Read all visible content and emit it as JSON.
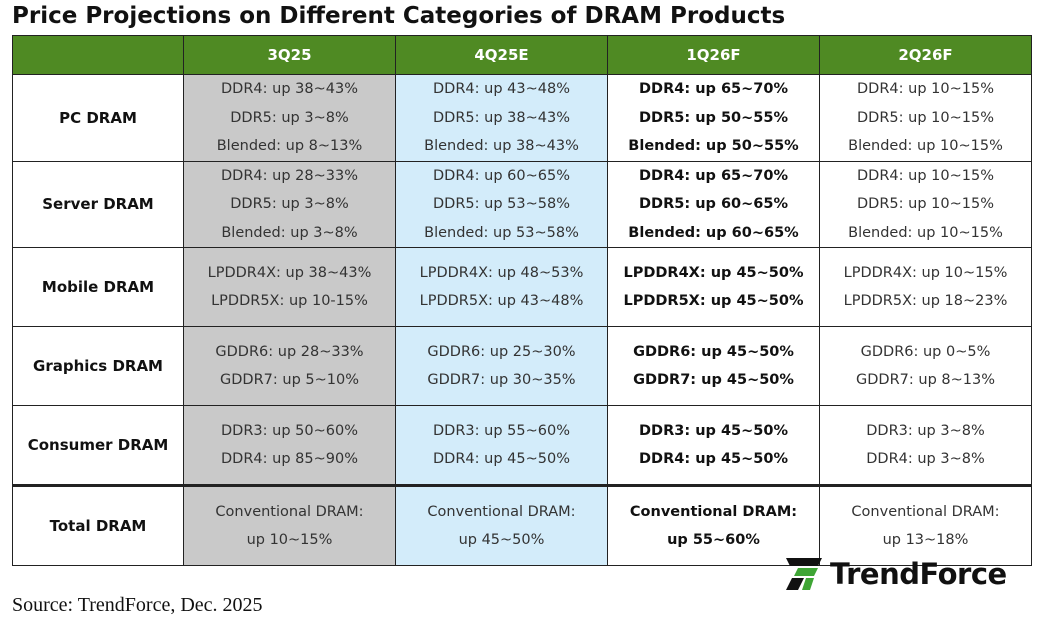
{
  "title": "Price Projections on Different Categories of DRAM Products",
  "table": {
    "header": [
      "3Q25",
      "4Q25E",
      "1Q26F",
      "2Q26F"
    ],
    "rows": [
      {
        "label": "PC DRAM",
        "cells": [
          [
            "DDR4: up 38~43%",
            "DDR5: up 3~8%",
            "Blended: up 8~13%"
          ],
          [
            "DDR4: up 43~48%",
            "DDR5: up 38~43%",
            "Blended: up 38~43%"
          ],
          [
            "DDR4: up 65~70%",
            "DDR5: up 50~55%",
            "Blended: up 50~55%"
          ],
          [
            "DDR4: up 10~15%",
            "DDR5: up 10~15%",
            "Blended: up 10~15%"
          ]
        ]
      },
      {
        "label": "Server DRAM",
        "cells": [
          [
            "DDR4: up 28~33%",
            "DDR5: up 3~8%",
            "Blended: up 3~8%"
          ],
          [
            "DDR4: up 60~65%",
            "DDR5: up 53~58%",
            "Blended: up 53~58%"
          ],
          [
            "DDR4: up 65~70%",
            "DDR5: up 60~65%",
            "Blended: up 60~65%"
          ],
          [
            "DDR4: up 10~15%",
            "DDR5: up 10~15%",
            "Blended: up 10~15%"
          ]
        ]
      },
      {
        "label": "Mobile DRAM",
        "cells": [
          [
            "LPDDR4X: up 38~43%",
            "LPDDR5X: up 10-15%"
          ],
          [
            "LPDDR4X: up 48~53%",
            "LPDDR5X: up 43~48%"
          ],
          [
            "LPDDR4X: up 45~50%",
            "LPDDR5X: up 45~50%"
          ],
          [
            "LPDDR4X: up 10~15%",
            "LPDDR5X: up 18~23%"
          ]
        ]
      },
      {
        "label": "Graphics DRAM",
        "cells": [
          [
            "GDDR6: up 28~33%",
            "GDDR7: up 5~10%"
          ],
          [
            "GDDR6: up 25~30%",
            "GDDR7: up 30~35%"
          ],
          [
            "GDDR6: up 45~50%",
            "GDDR7: up 45~50%"
          ],
          [
            "GDDR6: up 0~5%",
            "GDDR7: up 8~13%"
          ]
        ]
      },
      {
        "label": "Consumer DRAM",
        "cells": [
          [
            "DDR3: up 50~60%",
            "DDR4: up 85~90%"
          ],
          [
            "DDR3: up 55~60%",
            "DDR4: up 45~50%"
          ],
          [
            "DDR3: up 45~50%",
            "DDR4: up 45~50%"
          ],
          [
            "DDR3: up 3~8%",
            "DDR4: up 3~8%"
          ]
        ]
      },
      {
        "label": "Total DRAM",
        "cells": [
          [
            "Conventional DRAM:",
            "up 10~15%"
          ],
          [
            "Conventional DRAM:",
            "up 45~50%"
          ],
          [
            "Conventional DRAM:",
            "up 55~60%"
          ],
          [
            "Conventional DRAM:",
            "up 13~18%"
          ]
        ]
      }
    ]
  },
  "logo": "TrendForce",
  "source": "Source: TrendForce, Dec. 2025"
}
